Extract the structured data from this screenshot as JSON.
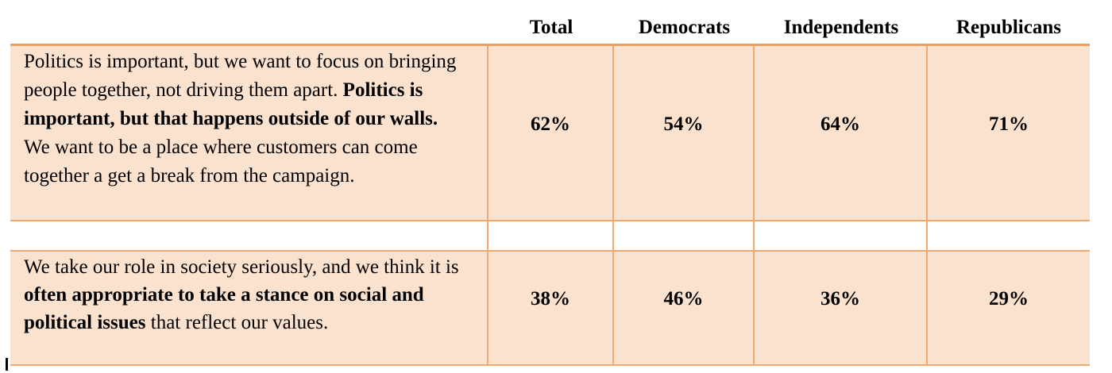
{
  "header": {
    "labels": [
      "Total",
      "Democrats",
      "Independents",
      "Republicans"
    ]
  },
  "rows": [
    {
      "statement": [
        {
          "text": "Politics is important, but we want to focus on bringing people together, not driving them apart. ",
          "bold": false
        },
        {
          "text": "Politics is important, but that happens outside of our walls.",
          "bold": true
        },
        {
          "text": " We want to be a place where customers can come together a get a break from the campaign.",
          "bold": false
        }
      ],
      "values": [
        "62%",
        "54%",
        "64%",
        "71%"
      ]
    },
    {
      "statement": [
        {
          "text": "We take our role in society seriously, and we think it is ",
          "bold": false
        },
        {
          "text": "often appropriate to take a stance on social and political issues",
          "bold": true
        },
        {
          "text": " that reflect our values.",
          "bold": false
        }
      ],
      "values": [
        "38%",
        "46%",
        "36%",
        "29%"
      ]
    }
  ],
  "chart_data": {
    "type": "table",
    "columns": [
      "",
      "Total",
      "Democrats",
      "Independents",
      "Republicans"
    ],
    "rows": [
      [
        "Politics is important, but we want to focus on bringing people together, not driving them apart. Politics is important, but that happens outside of our walls. We want to be a place where customers can come together a get a break from the campaign.",
        "62%",
        "54%",
        "64%",
        "71%"
      ],
      [
        "We take our role in society seriously, and we think it is often appropriate to take a stance on social and political issues that reflect our values.",
        "38%",
        "46%",
        "36%",
        "29%"
      ]
    ]
  },
  "colors": {
    "cell_background": "#fbe2cf",
    "border_thin": "#f1a770",
    "border_thick": "#ec9d61",
    "text": "#000000"
  }
}
